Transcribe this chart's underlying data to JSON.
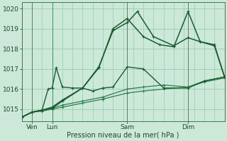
{
  "bg_color": "#cce8d8",
  "grid_color": "#99ccb0",
  "xlabel": "Pression niveau de la mer( hPa )",
  "ylim": [
    1014.4,
    1020.3
  ],
  "xlim": [
    0,
    100
  ],
  "yticks": [
    1015,
    1016,
    1017,
    1018,
    1019,
    1020
  ],
  "xtick_positions": [
    5,
    15,
    52,
    82
  ],
  "xtick_labels": [
    "Ven",
    "Lun",
    "Sam",
    "Dim"
  ],
  "vlines": [
    5,
    15,
    52,
    82
  ],
  "lines": [
    {
      "x": [
        0,
        5,
        10,
        15,
        20,
        30,
        40,
        52,
        60,
        70,
        82,
        90,
        100
      ],
      "y": [
        1014.6,
        1014.85,
        1014.9,
        1015.0,
        1015.1,
        1015.3,
        1015.5,
        1015.8,
        1015.9,
        1016.0,
        1016.1,
        1016.35,
        1016.55
      ],
      "color": "#2e7d4f",
      "lw": 0.9,
      "ms": 2.0
    },
    {
      "x": [
        0,
        5,
        10,
        15,
        20,
        30,
        40,
        52,
        60,
        70,
        82,
        90,
        100
      ],
      "y": [
        1014.6,
        1014.85,
        1014.95,
        1015.05,
        1015.2,
        1015.4,
        1015.6,
        1016.0,
        1016.1,
        1016.2,
        1016.1,
        1016.4,
        1016.6
      ],
      "color": "#2e7d4f",
      "lw": 0.9,
      "ms": 2.0
    },
    {
      "x": [
        0,
        5,
        10,
        13,
        15,
        17,
        20,
        25,
        30,
        35,
        40,
        45,
        52,
        60,
        70,
        82,
        90,
        100
      ],
      "y": [
        1014.6,
        1014.85,
        1014.95,
        1016.0,
        1016.05,
        1017.05,
        1016.1,
        1016.05,
        1016.05,
        1015.9,
        1016.05,
        1016.1,
        1017.1,
        1017.0,
        1016.05,
        1016.05,
        1016.4,
        1016.6
      ],
      "color": "#1a5c30",
      "lw": 1.0,
      "ms": 2.5
    },
    {
      "x": [
        0,
        5,
        10,
        15,
        20,
        30,
        38,
        45,
        52,
        57,
        65,
        75,
        82,
        88,
        95,
        100
      ],
      "y": [
        1014.6,
        1014.85,
        1014.95,
        1015.05,
        1015.4,
        1016.05,
        1017.1,
        1018.9,
        1019.3,
        1019.85,
        1018.6,
        1018.15,
        1018.55,
        1018.35,
        1018.2,
        1016.6
      ],
      "color": "#1a5c30",
      "lw": 1.1,
      "ms": 2.5
    },
    {
      "x": [
        0,
        5,
        10,
        15,
        20,
        30,
        38,
        45,
        52,
        60,
        68,
        75,
        82,
        88,
        95,
        100
      ],
      "y": [
        1014.6,
        1014.85,
        1014.95,
        1015.1,
        1015.45,
        1016.05,
        1017.05,
        1019.0,
        1019.5,
        1018.6,
        1018.2,
        1018.1,
        1019.85,
        1018.35,
        1018.15,
        1016.6
      ],
      "color": "#1a5c30",
      "lw": 1.1,
      "ms": 2.5
    }
  ]
}
